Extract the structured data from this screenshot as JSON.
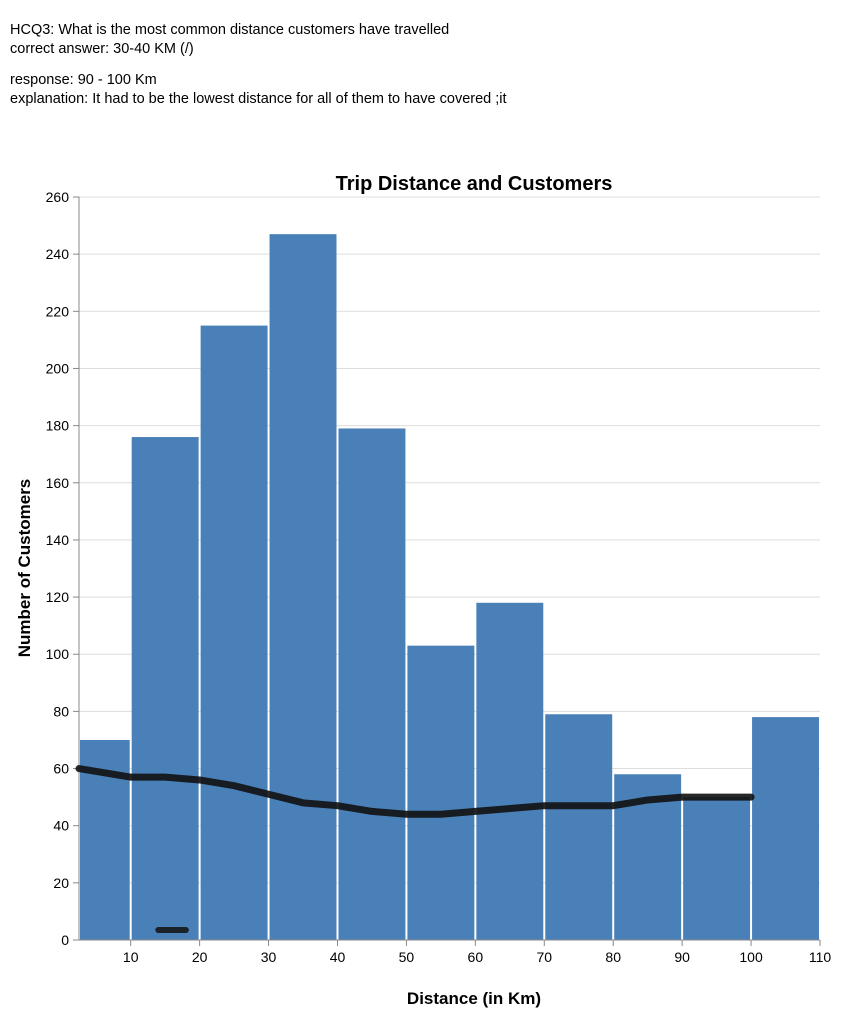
{
  "annotation": {
    "question": "HCQ3: What is the most common distance customers have travelled",
    "correct_answer": "correct answer: 30-40 KM (/)",
    "response": "response: 90 - 100 Km",
    "explanation": "explanation: It had to be the lowest distance for all of them to have covered ;it"
  },
  "colors": {
    "bar": "#4a80b8",
    "grid": "#dddddd",
    "axis": "#888888",
    "scribble": "#111111"
  },
  "chart_data": {
    "type": "bar",
    "title": "Trip Distance and Customers",
    "xlabel": "Distance (in Km)",
    "ylabel": "Number of Customers",
    "xlim": [
      2.5,
      110
    ],
    "ylim": [
      0,
      260
    ],
    "xticks": [
      10,
      20,
      30,
      40,
      50,
      60,
      70,
      80,
      90,
      100,
      110
    ],
    "yticks": [
      0,
      20,
      40,
      60,
      80,
      100,
      120,
      140,
      160,
      180,
      200,
      220,
      240,
      260
    ],
    "grid": true,
    "bins": [
      {
        "x0": 2.5,
        "x1": 10,
        "value": 70
      },
      {
        "x0": 10,
        "x1": 20,
        "value": 176
      },
      {
        "x0": 20,
        "x1": 30,
        "value": 215
      },
      {
        "x0": 30,
        "x1": 40,
        "value": 247
      },
      {
        "x0": 40,
        "x1": 50,
        "value": 179
      },
      {
        "x0": 50,
        "x1": 60,
        "value": 103
      },
      {
        "x0": 60,
        "x1": 70,
        "value": 118
      },
      {
        "x0": 70,
        "x1": 80,
        "value": 79
      },
      {
        "x0": 80,
        "x1": 90,
        "value": 58
      },
      {
        "x0": 90,
        "x1": 100,
        "value": 50
      },
      {
        "x0": 100,
        "x1": 110,
        "value": 78
      }
    ],
    "drawn_line": [
      [
        2.5,
        60
      ],
      [
        5,
        59
      ],
      [
        10,
        57
      ],
      [
        15,
        57
      ],
      [
        20,
        56
      ],
      [
        25,
        54
      ],
      [
        30,
        51
      ],
      [
        35,
        48
      ],
      [
        40,
        47
      ],
      [
        45,
        45
      ],
      [
        50,
        44
      ],
      [
        55,
        44
      ],
      [
        60,
        45
      ],
      [
        65,
        46
      ],
      [
        70,
        47
      ],
      [
        75,
        47
      ],
      [
        80,
        47
      ],
      [
        85,
        49
      ],
      [
        90,
        50
      ],
      [
        95,
        50
      ],
      [
        100,
        50
      ]
    ],
    "drawn_mark": [
      [
        14,
        3.5
      ],
      [
        18,
        3.5
      ]
    ]
  }
}
